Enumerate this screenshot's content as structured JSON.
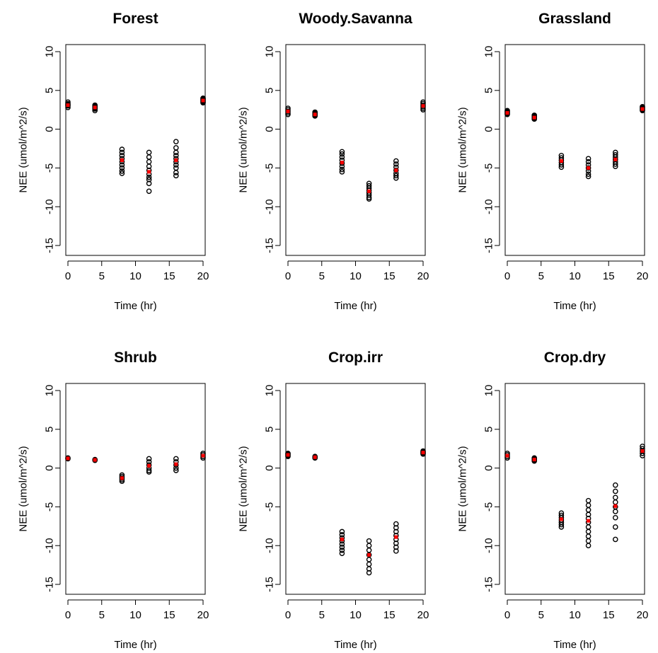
{
  "chart_data": [
    {
      "type": "scatter",
      "title": "Forest",
      "xlabel": "Time (hr)",
      "ylabel": "NEE (umol/m^2/s)",
      "xlim": [
        0,
        20
      ],
      "ylim": [
        -15,
        10
      ],
      "xticks": [
        0,
        5,
        10,
        15,
        20
      ],
      "yticks": [
        -15,
        -10,
        -5,
        0,
        5,
        10
      ],
      "grid": false,
      "mean_color": "#ff0000",
      "points": [
        {
          "x": 0,
          "y": [
            2.8,
            3.0,
            3.1,
            3.2,
            3.3,
            3.5
          ],
          "mean": 3.1
        },
        {
          "x": 4,
          "y": [
            2.4,
            2.6,
            2.7,
            2.8,
            2.9,
            3.0,
            3.1
          ],
          "mean": 2.8
        },
        {
          "x": 8,
          "y": [
            -2.6,
            -3.0,
            -3.4,
            -3.8,
            -4.2,
            -4.6,
            -5.0,
            -5.4,
            -5.7
          ],
          "mean": -4.0
        },
        {
          "x": 12,
          "y": [
            -3.0,
            -3.6,
            -4.2,
            -4.8,
            -5.3,
            -5.8,
            -6.2,
            -6.5,
            -7.0,
            -8.0
          ],
          "mean": -5.5
        },
        {
          "x": 16,
          "y": [
            -1.6,
            -2.4,
            -3.0,
            -3.4,
            -3.8,
            -4.2,
            -4.6,
            -5.0,
            -5.6,
            -6.0
          ],
          "mean": -4.0
        },
        {
          "x": 20,
          "y": [
            3.4,
            3.5,
            3.6,
            3.7,
            3.8,
            3.9,
            4.0
          ],
          "mean": 3.7
        }
      ]
    },
    {
      "type": "scatter",
      "title": "Woody.Savanna",
      "xlabel": "Time (hr)",
      "ylabel": "NEE (umol/m^2/s)",
      "xlim": [
        0,
        20
      ],
      "ylim": [
        -15,
        10
      ],
      "xticks": [
        0,
        5,
        10,
        15,
        20
      ],
      "yticks": [
        -15,
        -10,
        -5,
        0,
        5,
        10
      ],
      "grid": false,
      "mean_color": "#ff0000",
      "points": [
        {
          "x": 0,
          "y": [
            1.9,
            2.1,
            2.3,
            2.5,
            2.7
          ],
          "mean": 2.3
        },
        {
          "x": 4,
          "y": [
            1.7,
            1.8,
            1.9,
            2.0,
            2.1,
            2.2
          ],
          "mean": 1.9
        },
        {
          "x": 8,
          "y": [
            -2.9,
            -3.2,
            -3.6,
            -4.0,
            -4.4,
            -4.8,
            -5.2,
            -5.5
          ],
          "mean": -4.3
        },
        {
          "x": 12,
          "y": [
            -7.0,
            -7.3,
            -7.6,
            -7.9,
            -8.2,
            -8.5,
            -8.8,
            -9.0
          ],
          "mean": -8.0
        },
        {
          "x": 16,
          "y": [
            -4.1,
            -4.5,
            -4.9,
            -5.3,
            -5.7,
            -6.0,
            -6.3
          ],
          "mean": -5.3
        },
        {
          "x": 20,
          "y": [
            2.5,
            2.7,
            2.9,
            3.1,
            3.3,
            3.5
          ],
          "mean": 3.0
        }
      ]
    },
    {
      "type": "scatter",
      "title": "Grassland",
      "xlabel": "Time (hr)",
      "ylabel": "NEE (umol/m^2/s)",
      "xlim": [
        0,
        20
      ],
      "ylim": [
        -15,
        10
      ],
      "xticks": [
        0,
        5,
        10,
        15,
        20
      ],
      "yticks": [
        -15,
        -10,
        -5,
        0,
        5,
        10
      ],
      "grid": false,
      "mean_color": "#ff0000",
      "points": [
        {
          "x": 0,
          "y": [
            1.9,
            2.0,
            2.1,
            2.2,
            2.3,
            2.4
          ],
          "mean": 2.1
        },
        {
          "x": 4,
          "y": [
            1.3,
            1.4,
            1.5,
            1.6,
            1.7,
            1.8
          ],
          "mean": 1.5
        },
        {
          "x": 8,
          "y": [
            -3.4,
            -3.7,
            -4.0,
            -4.3,
            -4.6,
            -4.9
          ],
          "mean": -4.1
        },
        {
          "x": 12,
          "y": [
            -3.8,
            -4.2,
            -4.6,
            -5.0,
            -5.4,
            -5.8,
            -6.1
          ],
          "mean": -5.0
        },
        {
          "x": 16,
          "y": [
            -3.0,
            -3.3,
            -3.6,
            -3.9,
            -4.2,
            -4.5,
            -4.8
          ],
          "mean": -3.9
        },
        {
          "x": 20,
          "y": [
            2.4,
            2.5,
            2.6,
            2.7,
            2.8,
            2.9
          ],
          "mean": 2.6
        }
      ]
    },
    {
      "type": "scatter",
      "title": "Shrub",
      "xlabel": "Time (hr)",
      "ylabel": "NEE (umol/m^2/s)",
      "xlim": [
        0,
        20
      ],
      "ylim": [
        -15,
        10
      ],
      "xticks": [
        0,
        5,
        10,
        15,
        20
      ],
      "yticks": [
        -15,
        -10,
        -5,
        0,
        5,
        10
      ],
      "grid": false,
      "mean_color": "#ff0000",
      "points": [
        {
          "x": 0,
          "y": [
            1.2,
            1.3
          ],
          "mean": 1.25
        },
        {
          "x": 4,
          "y": [
            1.0,
            1.1
          ],
          "mean": 1.05
        },
        {
          "x": 8,
          "y": [
            -0.9,
            -1.1,
            -1.3,
            -1.5,
            -1.7
          ],
          "mean": -1.3
        },
        {
          "x": 12,
          "y": [
            1.2,
            0.8,
            0.4,
            0.0,
            -0.3,
            -0.5
          ],
          "mean": 0.3
        },
        {
          "x": 16,
          "y": [
            1.2,
            0.8,
            0.4,
            0.0,
            -0.3
          ],
          "mean": 0.5
        },
        {
          "x": 20,
          "y": [
            1.3,
            1.5,
            1.7,
            1.9
          ],
          "mean": 1.6
        }
      ]
    },
    {
      "type": "scatter",
      "title": "Crop.irr",
      "xlabel": "Time (hr)",
      "ylabel": "NEE (umol/m^2/s)",
      "xlim": [
        0,
        20
      ],
      "ylim": [
        -15,
        10
      ],
      "xticks": [
        0,
        5,
        10,
        15,
        20
      ],
      "yticks": [
        -15,
        -10,
        -5,
        0,
        5,
        10
      ],
      "grid": false,
      "mean_color": "#ff0000",
      "points": [
        {
          "x": 0,
          "y": [
            1.5,
            1.6,
            1.7,
            1.8,
            1.9
          ],
          "mean": 1.7
        },
        {
          "x": 4,
          "y": [
            1.3,
            1.4,
            1.5
          ],
          "mean": 1.4
        },
        {
          "x": 8,
          "y": [
            -8.2,
            -8.6,
            -9.0,
            -9.4,
            -9.8,
            -10.2,
            -10.6,
            -11.0
          ],
          "mean": -9.2
        },
        {
          "x": 12,
          "y": [
            -9.4,
            -10.0,
            -10.6,
            -11.2,
            -11.8,
            -12.4,
            -13.0,
            -13.5
          ],
          "mean": -11.2
        },
        {
          "x": 16,
          "y": [
            -7.2,
            -7.7,
            -8.2,
            -8.7,
            -9.2,
            -9.7,
            -10.2,
            -10.7
          ],
          "mean": -8.9
        },
        {
          "x": 20,
          "y": [
            1.8,
            1.9,
            2.0,
            2.1,
            2.2
          ],
          "mean": 2.0
        }
      ]
    },
    {
      "type": "scatter",
      "title": "Crop.dry",
      "xlabel": "Time (hr)",
      "ylabel": "NEE (umol/m^2/s)",
      "xlim": [
        0,
        20
      ],
      "ylim": [
        -15,
        10
      ],
      "xticks": [
        0,
        5,
        10,
        15,
        20
      ],
      "yticks": [
        -15,
        -10,
        -5,
        0,
        5,
        10
      ],
      "grid": false,
      "mean_color": "#ff0000",
      "points": [
        {
          "x": 0,
          "y": [
            1.3,
            1.5,
            1.7,
            1.9
          ],
          "mean": 1.6
        },
        {
          "x": 4,
          "y": [
            0.9,
            1.0,
            1.1,
            1.2,
            1.3
          ],
          "mean": 1.1
        },
        {
          "x": 8,
          "y": [
            -5.8,
            -6.1,
            -6.4,
            -6.7,
            -7.0,
            -7.3,
            -7.6
          ],
          "mean": -6.6
        },
        {
          "x": 12,
          "y": [
            -4.2,
            -4.8,
            -5.4,
            -6.0,
            -6.5,
            -7.0,
            -7.6,
            -8.2,
            -8.8,
            -9.4,
            -10.0
          ],
          "mean": -6.8
        },
        {
          "x": 16,
          "y": [
            -2.2,
            -3.0,
            -3.8,
            -4.4,
            -5.0,
            -5.6,
            -6.4,
            -7.6,
            -9.2
          ],
          "mean": -4.9
        },
        {
          "x": 20,
          "y": [
            1.6,
            1.9,
            2.2,
            2.5,
            2.8
          ],
          "mean": 2.2
        }
      ]
    }
  ]
}
